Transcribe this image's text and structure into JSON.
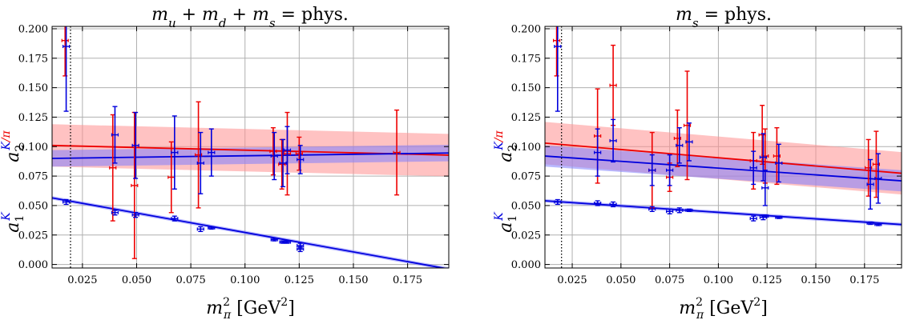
{
  "chart_data": [
    {
      "type": "scatter",
      "title_parts": {
        "math": "m_u + m_d + m_s = ",
        "rest": "phys."
      },
      "xlabel": {
        "math": "m",
        "sub": "π",
        "sup": "2",
        "unit": "[GeV",
        "unit_sup": "2",
        "unit_close": "]"
      },
      "ylabel_blue": {
        "main": "a",
        "sub": "1",
        "sup": "K"
      },
      "ylabel_red": {
        "main": "a",
        "sub": "2",
        "sup": "K",
        "sup2": "/π"
      },
      "xlim": [
        0.011,
        0.194
      ],
      "ylim": [
        -0.003,
        0.202
      ],
      "xticks": [
        "0.025",
        "0.050",
        "0.075",
        "0.100",
        "0.125",
        "0.150",
        "0.175"
      ],
      "xtick_values": [
        0.025,
        0.05,
        0.075,
        0.1,
        0.125,
        0.15,
        0.175
      ],
      "yticks": [
        "0.000",
        "0.025",
        "0.050",
        "0.075",
        "0.100",
        "0.125",
        "0.150",
        "0.175",
        "0.200"
      ],
      "ytick_values": [
        0.0,
        0.025,
        0.05,
        0.075,
        0.1,
        0.125,
        0.15,
        0.175,
        0.2
      ],
      "grid": true,
      "physical_point_x": 0.0195,
      "series": [
        {
          "key": "a1K",
          "color": "#0000dd",
          "band_color": "#8080ff",
          "fit": {
            "y_at_xmin": 0.0565,
            "slope": -0.33,
            "band_halfwidth": 0.0015
          },
          "points": [
            {
              "x": 0.0175,
              "y": 0.053,
              "err": 0.002
            },
            {
              "x": 0.04,
              "y": 0.044,
              "err": 0.002
            },
            {
              "x": 0.0495,
              "y": 0.042,
              "err": 0.002
            },
            {
              "x": 0.0675,
              "y": 0.039,
              "err": 0.002
            },
            {
              "x": 0.0795,
              "y": 0.03,
              "err": 0.002
            },
            {
              "x": 0.0845,
              "y": 0.031,
              "err": 0.001
            },
            {
              "x": 0.1135,
              "y": 0.021,
              "err": 0.001
            },
            {
              "x": 0.1175,
              "y": 0.019,
              "err": 0.001
            },
            {
              "x": 0.1195,
              "y": 0.019,
              "err": 0.001
            },
            {
              "x": 0.1255,
              "y": 0.016,
              "err": 0.002
            },
            {
              "x": 0.1255,
              "y": 0.013,
              "err": 0.002
            }
          ]
        },
        {
          "key": "a2K",
          "color": "#0000dd",
          "band_color": "#8080ff",
          "fit": {
            "y_at_xmin": 0.09,
            "slope": 0.025,
            "band_halfwidth": 0.007
          },
          "points": [
            {
              "x": 0.0175,
              "y": 0.185,
              "err": 0.055
            },
            {
              "x": 0.04,
              "y": 0.11,
              "err": 0.024
            },
            {
              "x": 0.0495,
              "y": 0.101,
              "err": 0.028
            },
            {
              "x": 0.0675,
              "y": 0.095,
              "err": 0.031
            },
            {
              "x": 0.0795,
              "y": 0.086,
              "err": 0.026
            },
            {
              "x": 0.0845,
              "y": 0.095,
              "err": 0.02
            },
            {
              "x": 0.1135,
              "y": 0.092,
              "err": 0.02
            },
            {
              "x": 0.1175,
              "y": 0.086,
              "err": 0.02
            },
            {
              "x": 0.1195,
              "y": 0.097,
              "err": 0.02
            },
            {
              "x": 0.1255,
              "y": 0.089,
              "err": 0.012
            }
          ]
        },
        {
          "key": "a2pi",
          "color": "#ee0000",
          "band_color": "#ff9090",
          "fit": {
            "y_at_xmin": 0.101,
            "slope": -0.045,
            "band_halfwidth": 0.018
          },
          "points": [
            {
              "x": 0.017,
              "y": 0.19,
              "err": 0.03
            },
            {
              "x": 0.039,
              "y": 0.082,
              "err": 0.045
            },
            {
              "x": 0.049,
              "y": 0.067,
              "err": 0.062
            },
            {
              "x": 0.066,
              "y": 0.074,
              "err": 0.03
            },
            {
              "x": 0.0785,
              "y": 0.093,
              "err": 0.045
            },
            {
              "x": 0.113,
              "y": 0.096,
              "err": 0.02
            },
            {
              "x": 0.117,
              "y": 0.085,
              "err": 0.021
            },
            {
              "x": 0.1195,
              "y": 0.094,
              "err": 0.035
            },
            {
              "x": 0.125,
              "y": 0.094,
              "err": 0.014
            },
            {
              "x": 0.17,
              "y": 0.095,
              "err": 0.036
            }
          ]
        }
      ]
    },
    {
      "type": "scatter",
      "title_parts": {
        "math": "m_s = ",
        "rest": "phys."
      },
      "xlabel": {
        "math": "m",
        "sub": "π",
        "sup": "2",
        "unit": "[GeV",
        "unit_sup": "2",
        "unit_close": "]"
      },
      "ylabel_blue": {
        "main": "a",
        "sub": "1",
        "sup": "K"
      },
      "ylabel_red": {
        "main": "a",
        "sub": "2",
        "sup": "K",
        "sup2": "/π"
      },
      "xlim": [
        0.011,
        0.194
      ],
      "ylim": [
        -0.003,
        0.202
      ],
      "xticks": [
        "0.025",
        "0.050",
        "0.075",
        "0.100",
        "0.125",
        "0.150",
        "0.175"
      ],
      "xtick_values": [
        0.025,
        0.05,
        0.075,
        0.1,
        0.125,
        0.15,
        0.175
      ],
      "yticks": [
        "0.000",
        "0.025",
        "0.050",
        "0.075",
        "0.100",
        "0.125",
        "0.150",
        "0.175",
        "0.200"
      ],
      "ytick_values": [
        0.0,
        0.025,
        0.05,
        0.075,
        0.1,
        0.125,
        0.15,
        0.175,
        0.2
      ],
      "grid": true,
      "physical_point_x": 0.0195,
      "series": [
        {
          "key": "a1K",
          "color": "#0000dd",
          "band_color": "#8080ff",
          "fit": {
            "y_at_xmin": 0.054,
            "slope": -0.11,
            "band_halfwidth": 0.0015
          },
          "points": [
            {
              "x": 0.0175,
              "y": 0.053,
              "err": 0.002
            },
            {
              "x": 0.038,
              "y": 0.052,
              "err": 0.002
            },
            {
              "x": 0.046,
              "y": 0.051,
              "err": 0.002
            },
            {
              "x": 0.066,
              "y": 0.047,
              "err": 0.002
            },
            {
              "x": 0.075,
              "y": 0.045,
              "err": 0.002
            },
            {
              "x": 0.08,
              "y": 0.046,
              "err": 0.002
            },
            {
              "x": 0.085,
              "y": 0.046,
              "err": 0.001
            },
            {
              "x": 0.118,
              "y": 0.039,
              "err": 0.002
            },
            {
              "x": 0.123,
              "y": 0.04,
              "err": 0.002
            },
            {
              "x": 0.124,
              "y": 0.041,
              "err": 0.001
            },
            {
              "x": 0.131,
              "y": 0.04,
              "err": 0.001
            },
            {
              "x": 0.178,
              "y": 0.035,
              "err": 0.001
            },
            {
              "x": 0.182,
              "y": 0.034,
              "err": 0.001
            }
          ]
        },
        {
          "key": "a2K",
          "color": "#0000dd",
          "band_color": "#8080ff",
          "fit": {
            "y_at_xmin": 0.092,
            "slope": -0.115,
            "band_halfwidth": 0.009
          },
          "points": [
            {
              "x": 0.0175,
              "y": 0.185,
              "err": 0.055
            },
            {
              "x": 0.038,
              "y": 0.095,
              "err": 0.02
            },
            {
              "x": 0.046,
              "y": 0.105,
              "err": 0.018
            },
            {
              "x": 0.066,
              "y": 0.08,
              "err": 0.013
            },
            {
              "x": 0.075,
              "y": 0.08,
              "err": 0.013
            },
            {
              "x": 0.08,
              "y": 0.101,
              "err": 0.015
            },
            {
              "x": 0.085,
              "y": 0.104,
              "err": 0.016
            },
            {
              "x": 0.118,
              "y": 0.082,
              "err": 0.014
            },
            {
              "x": 0.123,
              "y": 0.091,
              "err": 0.02
            },
            {
              "x": 0.124,
              "y": 0.065,
              "err": 0.015
            },
            {
              "x": 0.131,
              "y": 0.086,
              "err": 0.016
            },
            {
              "x": 0.178,
              "y": 0.068,
              "err": 0.021
            },
            {
              "x": 0.182,
              "y": 0.073,
              "err": 0.021
            }
          ]
        },
        {
          "key": "a2pi",
          "color": "#ee0000",
          "band_color": "#ff9090",
          "fit": {
            "y_at_xmin": 0.103,
            "slope": -0.14,
            "band_halfwidth": 0.018
          },
          "points": [
            {
              "x": 0.017,
              "y": 0.19,
              "err": 0.03
            },
            {
              "x": 0.038,
              "y": 0.109,
              "err": 0.04
            },
            {
              "x": 0.046,
              "y": 0.152,
              "err": 0.034
            },
            {
              "x": 0.066,
              "y": 0.08,
              "err": 0.032
            },
            {
              "x": 0.075,
              "y": 0.074,
              "err": 0.012
            },
            {
              "x": 0.079,
              "y": 0.107,
              "err": 0.024
            },
            {
              "x": 0.084,
              "y": 0.118,
              "err": 0.046
            },
            {
              "x": 0.118,
              "y": 0.088,
              "err": 0.024
            },
            {
              "x": 0.1225,
              "y": 0.11,
              "err": 0.025
            },
            {
              "x": 0.124,
              "y": 0.092,
              "err": 0.023
            },
            {
              "x": 0.13,
              "y": 0.092,
              "err": 0.024
            },
            {
              "x": 0.177,
              "y": 0.082,
              "err": 0.024
            },
            {
              "x": 0.181,
              "y": 0.085,
              "err": 0.028
            }
          ]
        }
      ]
    }
  ]
}
